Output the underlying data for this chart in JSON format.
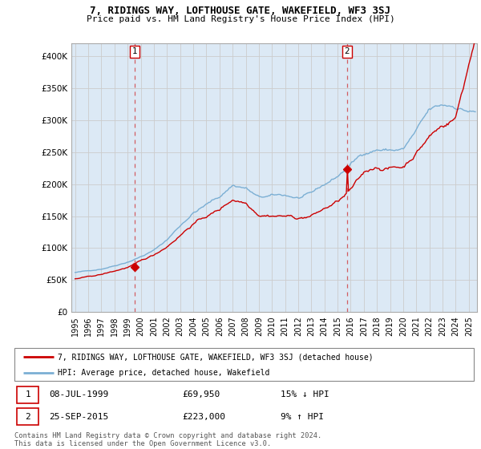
{
  "title": "7, RIDINGS WAY, LOFTHOUSE GATE, WAKEFIELD, WF3 3SJ",
  "subtitle": "Price paid vs. HM Land Registry's House Price Index (HPI)",
  "ylim": [
    0,
    420000
  ],
  "yticks": [
    0,
    50000,
    100000,
    150000,
    200000,
    250000,
    300000,
    350000,
    400000
  ],
  "ytick_labels": [
    "£0",
    "£50K",
    "£100K",
    "£150K",
    "£200K",
    "£250K",
    "£300K",
    "£350K",
    "£400K"
  ],
  "hpi_color": "#7bafd4",
  "price_color": "#cc0000",
  "grid_color": "#cccccc",
  "bg_color": "#ffffff",
  "plot_bg_color": "#dce9f5",
  "legend_label_price": "7, RIDINGS WAY, LOFTHOUSE GATE, WAKEFIELD, WF3 3SJ (detached house)",
  "legend_label_hpi": "HPI: Average price, detached house, Wakefield",
  "annotation1_date": "08-JUL-1999",
  "annotation1_price": "£69,950",
  "annotation1_pct": "15% ↓ HPI",
  "annotation2_date": "25-SEP-2015",
  "annotation2_price": "£223,000",
  "annotation2_pct": "9% ↑ HPI",
  "footer": "Contains HM Land Registry data © Crown copyright and database right 2024.\nThis data is licensed under the Open Government Licence v3.0.",
  "sale1_x": 1999.53,
  "sale1_y": 69950,
  "sale2_x": 2015.73,
  "sale2_y": 223000,
  "x_tick_years": [
    1995,
    1996,
    1997,
    1998,
    1999,
    2000,
    2001,
    2002,
    2003,
    2004,
    2005,
    2006,
    2007,
    2008,
    2009,
    2010,
    2011,
    2012,
    2013,
    2014,
    2015,
    2016,
    2017,
    2018,
    2019,
    2020,
    2021,
    2022,
    2023,
    2024,
    2025
  ]
}
